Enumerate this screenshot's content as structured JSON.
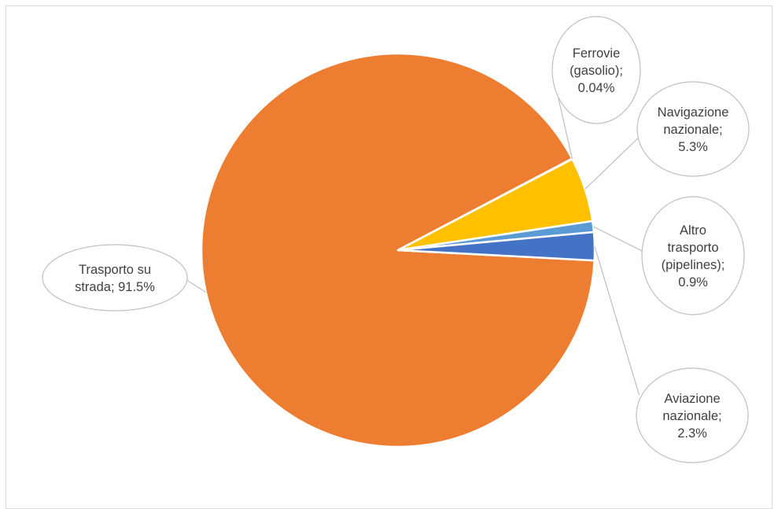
{
  "chart_data": {
    "type": "pie",
    "title": "",
    "slices": [
      {
        "name": "Trasporto su strada",
        "value": 91.5,
        "label_lines": [
          "Trasporto su",
          "strada; 91.5%"
        ],
        "color": "#ED7D31"
      },
      {
        "name": "Ferrovie (gasolio)",
        "value": 0.04,
        "label_lines": [
          "Ferrovie",
          "(gasolio);",
          "0.04%"
        ],
        "color": "#A5A5A5"
      },
      {
        "name": "Navigazione nazionale",
        "value": 5.3,
        "label_lines": [
          "Navigazione",
          "nazionale;",
          "5.3%"
        ],
        "color": "#FFC000"
      },
      {
        "name": "Altro trasporto (pipelines)",
        "value": 0.9,
        "label_lines": [
          "Altro",
          "trasporto",
          "(pipelines);",
          "0.9%"
        ],
        "color": "#5B9BD5"
      },
      {
        "name": "Aviazione nazionale",
        "value": 2.3,
        "label_lines": [
          "Aviazione",
          "nazionale;",
          "2.3%"
        ],
        "color": "#4472C4"
      }
    ],
    "legend": "none"
  }
}
